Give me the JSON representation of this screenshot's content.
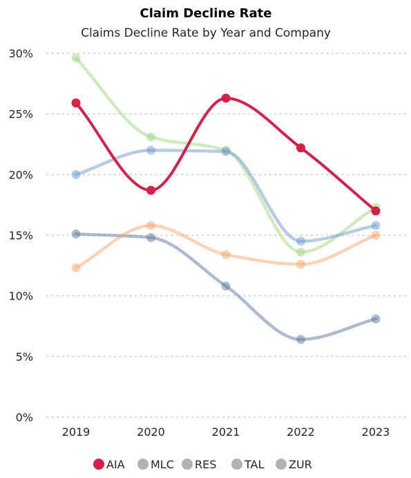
{
  "chart_data": {
    "type": "line",
    "title": "Claim Decline Rate",
    "subtitle": "Claims Decline Rate by Year and Company",
    "xlabel": "",
    "ylabel": "",
    "categories": [
      "2019",
      "2020",
      "2021",
      "2022",
      "2023"
    ],
    "ylim": [
      0,
      30
    ],
    "yticks": [
      0,
      5,
      10,
      15,
      20,
      25,
      30
    ],
    "ytick_labels": [
      "0%",
      "5%",
      "10%",
      "15%",
      "20%",
      "25%",
      "30%"
    ],
    "grid": true,
    "legend_position": "bottom",
    "series": [
      {
        "name": "AIA",
        "values": [
          25.9,
          18.7,
          26.3,
          22.2,
          17.0
        ],
        "color": "#d4204a",
        "highlighted": true
      },
      {
        "name": "MLC",
        "values": [
          15.1,
          14.8,
          10.8,
          6.4,
          8.1
        ],
        "color": "#5f7699",
        "highlighted": false
      },
      {
        "name": "RES",
        "values": [
          12.3,
          15.8,
          13.4,
          12.6,
          15.0
        ],
        "color": "#f4a86a",
        "highlighted": false
      },
      {
        "name": "TAL",
        "values": [
          29.6,
          23.1,
          22.0,
          13.6,
          17.3
        ],
        "color": "#a2d67d",
        "highlighted": false
      },
      {
        "name": "ZUR",
        "values": [
          20.0,
          22.0,
          21.9,
          14.5,
          15.8
        ],
        "color": "#6e98cc",
        "highlighted": false
      }
    ],
    "legend_marker_color_inactive": "#b3b0ad"
  }
}
